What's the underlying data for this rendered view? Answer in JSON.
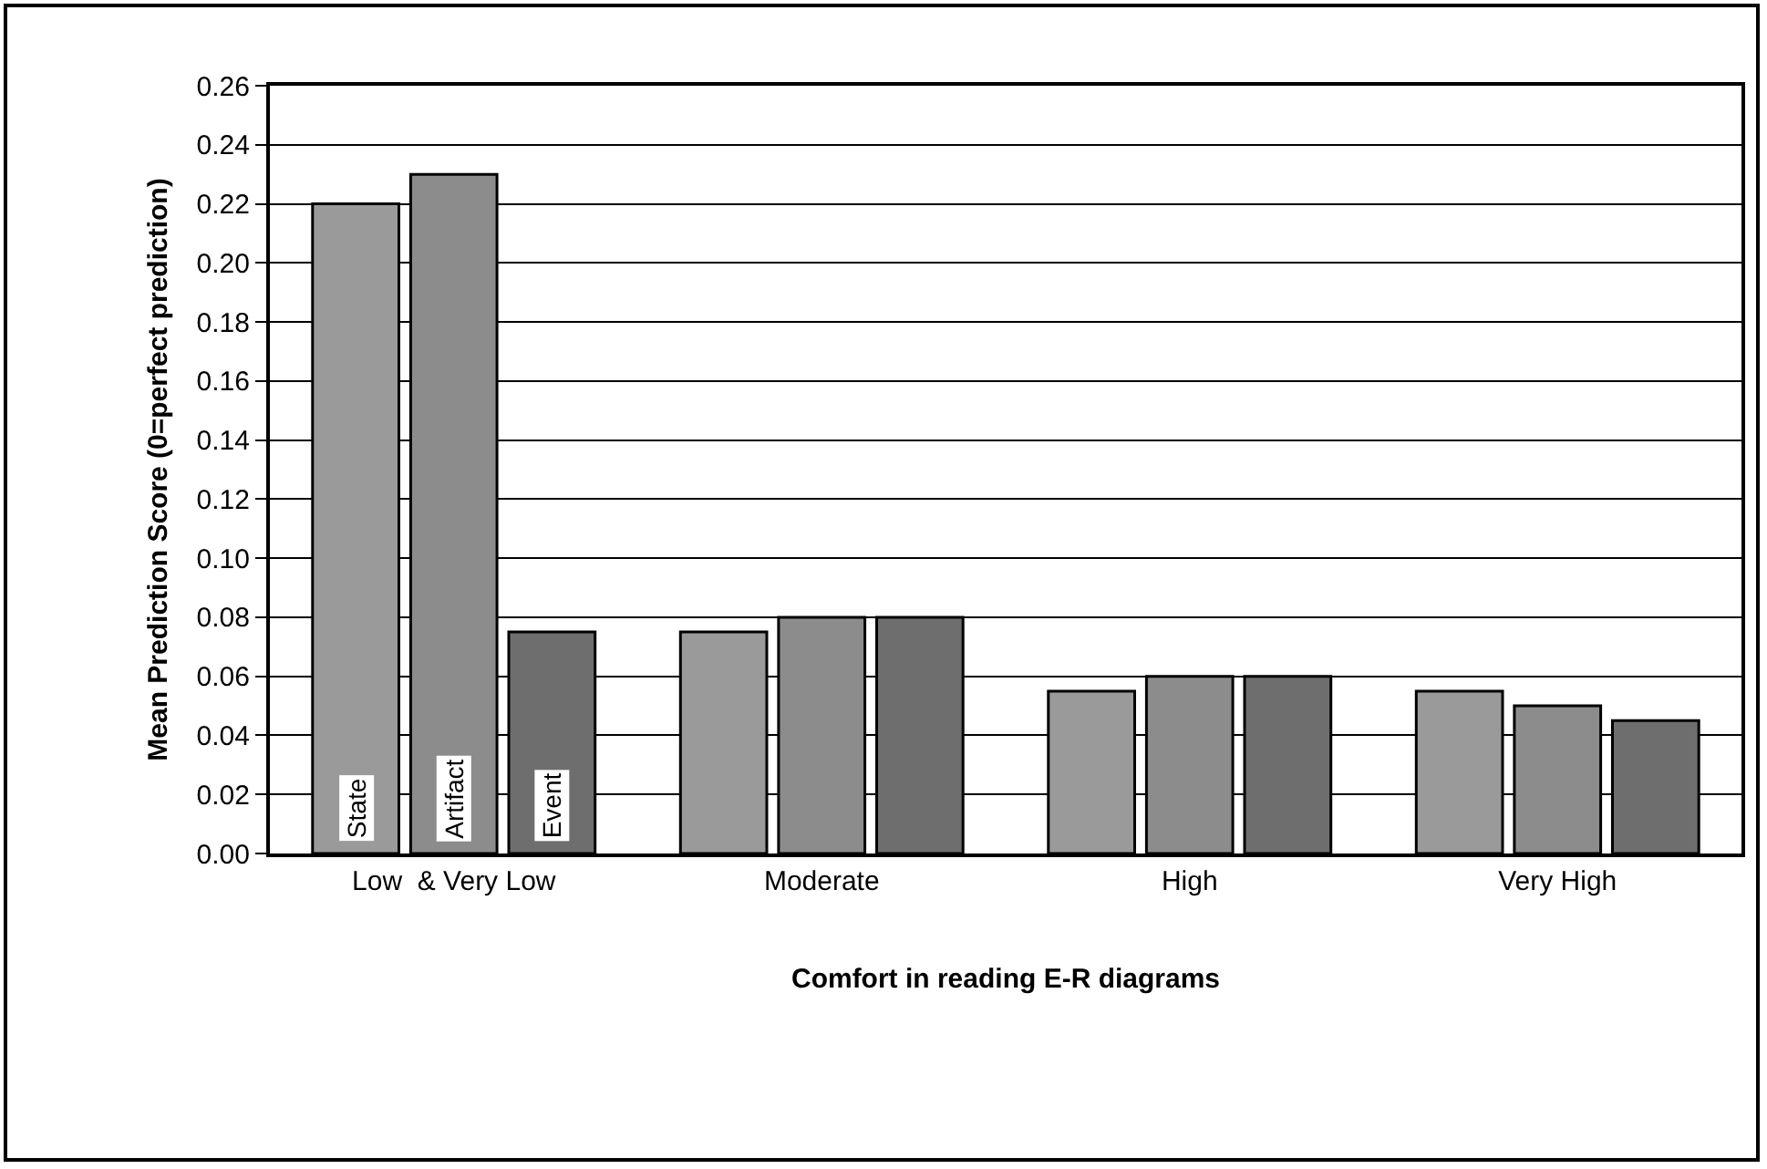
{
  "chart_data": {
    "type": "bar",
    "xlabel": "Comfort in reading E-R diagrams",
    "ylabel": "Mean Prediction Score (0=perfect prediction)",
    "categories": [
      "Low  & Very Low",
      "Moderate",
      "High",
      "Very High"
    ],
    "series": [
      {
        "name": "State",
        "color": "#9a9a9a",
        "values": [
          0.22,
          0.075,
          0.055,
          0.055
        ]
      },
      {
        "name": "Artifact",
        "color": "#8c8c8c",
        "values": [
          0.23,
          0.08,
          0.06,
          0.05
        ]
      },
      {
        "name": "Event",
        "color": "#6e6e6e",
        "values": [
          0.075,
          0.08,
          0.06,
          0.045
        ]
      }
    ],
    "ylim": [
      0,
      0.26
    ],
    "yticks": [
      {
        "value": 0,
        "label": "0.00"
      },
      {
        "value": 0.02,
        "label": "0.02"
      },
      {
        "value": 0.04,
        "label": "0.04"
      },
      {
        "value": 0.06,
        "label": "0.06"
      },
      {
        "value": 0.08,
        "label": "0.08"
      },
      {
        "value": 0.1,
        "label": "0.10"
      },
      {
        "value": 0.12,
        "label": "0.12"
      },
      {
        "value": 0.14,
        "label": "0.14"
      },
      {
        "value": 0.16,
        "label": "0.16"
      },
      {
        "value": 0.18,
        "label": "0.18"
      },
      {
        "value": 0.2,
        "label": "0.20"
      },
      {
        "value": 0.22,
        "label": "0.22"
      },
      {
        "value": 0.24,
        "label": "0.24"
      },
      {
        "value": 0.26,
        "label": "0.26"
      }
    ],
    "grid": "y",
    "legend": false
  }
}
